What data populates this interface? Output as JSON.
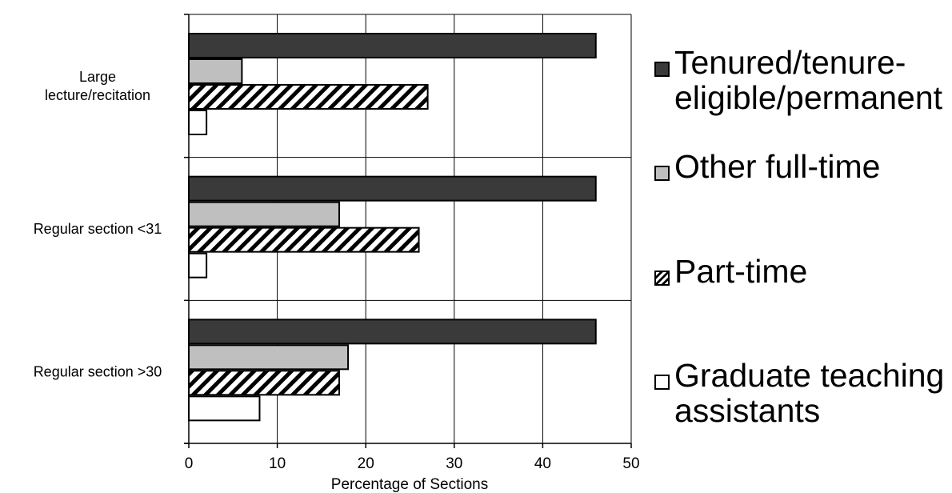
{
  "chart_data": {
    "type": "bar",
    "orientation": "horizontal",
    "categories": [
      "Large\nlecture/recitation",
      "Regular section <31",
      "Regular section >30"
    ],
    "series": [
      {
        "name": "Tenured/tenure-eligible/permanent",
        "values": [
          46,
          46,
          46
        ],
        "fill": "#3a3a3a",
        "pattern": "solid"
      },
      {
        "name": "Other full-time",
        "values": [
          6,
          17,
          18
        ],
        "fill": "#bfbfbf",
        "pattern": "solid"
      },
      {
        "name": "Part-time",
        "values": [
          27,
          26,
          17
        ],
        "fill": "#ffffff",
        "pattern": "hatch"
      },
      {
        "name": "Graduate teaching assistants",
        "values": [
          2,
          2,
          8
        ],
        "fill": "#ffffff",
        "pattern": "solid"
      }
    ],
    "title": "",
    "xlabel": "Percentage of Sections",
    "ylabel": "",
    "xlim": [
      0,
      50
    ],
    "xticks": [
      0,
      10,
      20,
      30,
      40,
      50
    ],
    "grid": "vertical",
    "legend_position": "right"
  },
  "legend": {
    "items": [
      {
        "label": "Tenured/tenure-\neligible/permanent",
        "fill": "#3a3a3a",
        "pattern": "solid"
      },
      {
        "label": "Other full-time",
        "fill": "#bfbfbf",
        "pattern": "solid"
      },
      {
        "label": "Part-time",
        "fill": "#ffffff",
        "pattern": "hatch"
      },
      {
        "label": "Graduate teaching\nassistants",
        "fill": "#ffffff",
        "pattern": "solid"
      }
    ]
  }
}
